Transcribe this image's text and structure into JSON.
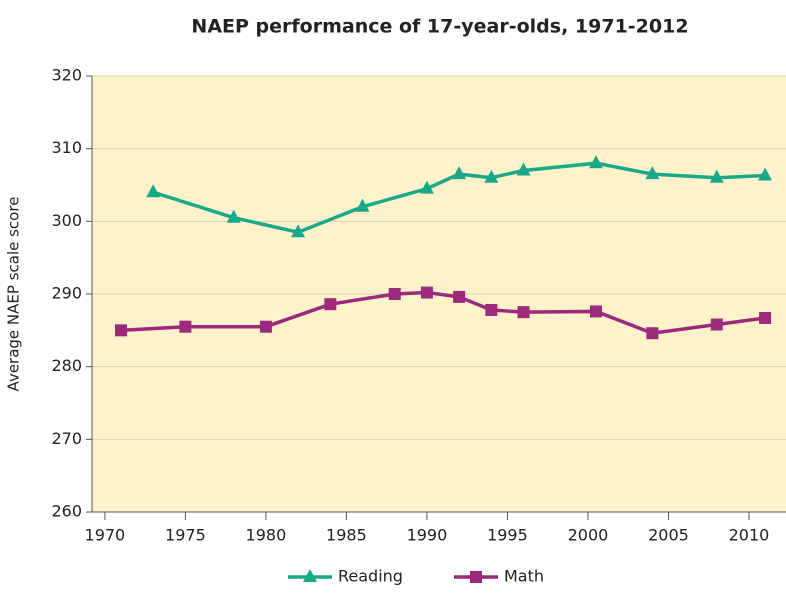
{
  "chart_data": {
    "type": "line",
    "title": "NAEP performance of 17-year-olds, 1971-2012",
    "ylabel": "Average NAEP scale score",
    "xlim": [
      1969.2,
      2012.3
    ],
    "xticks": [
      1970,
      1975,
      1980,
      1985,
      1990,
      1995,
      2000,
      2005,
      2010
    ],
    "ylim": [
      260,
      320
    ],
    "yticks": [
      260,
      270,
      280,
      290,
      300,
      310,
      320
    ],
    "grid": true,
    "legend": "bottom",
    "series": [
      {
        "name": "Reading",
        "color": "#1aa88a",
        "marker": "triangle",
        "x": [
          1973,
          1978,
          1982,
          1986,
          1990,
          1992,
          1994,
          1996,
          2000.5,
          2004,
          2008,
          2011
        ],
        "values": [
          304,
          300.5,
          298.5,
          302,
          304.5,
          306.5,
          306,
          307,
          308,
          306.5,
          306,
          306.3
        ]
      },
      {
        "name": "Math",
        "color": "#9b2a7d",
        "marker": "square",
        "x": [
          1971,
          1975,
          1980,
          1984,
          1988,
          1990,
          1992,
          1994,
          1996,
          2000.5,
          2004,
          2008,
          2011
        ],
        "values": [
          285,
          285.5,
          285.5,
          288.6,
          290,
          290.2,
          289.6,
          287.8,
          287.5,
          287.6,
          284.6,
          285.8,
          286.7
        ]
      }
    ]
  }
}
